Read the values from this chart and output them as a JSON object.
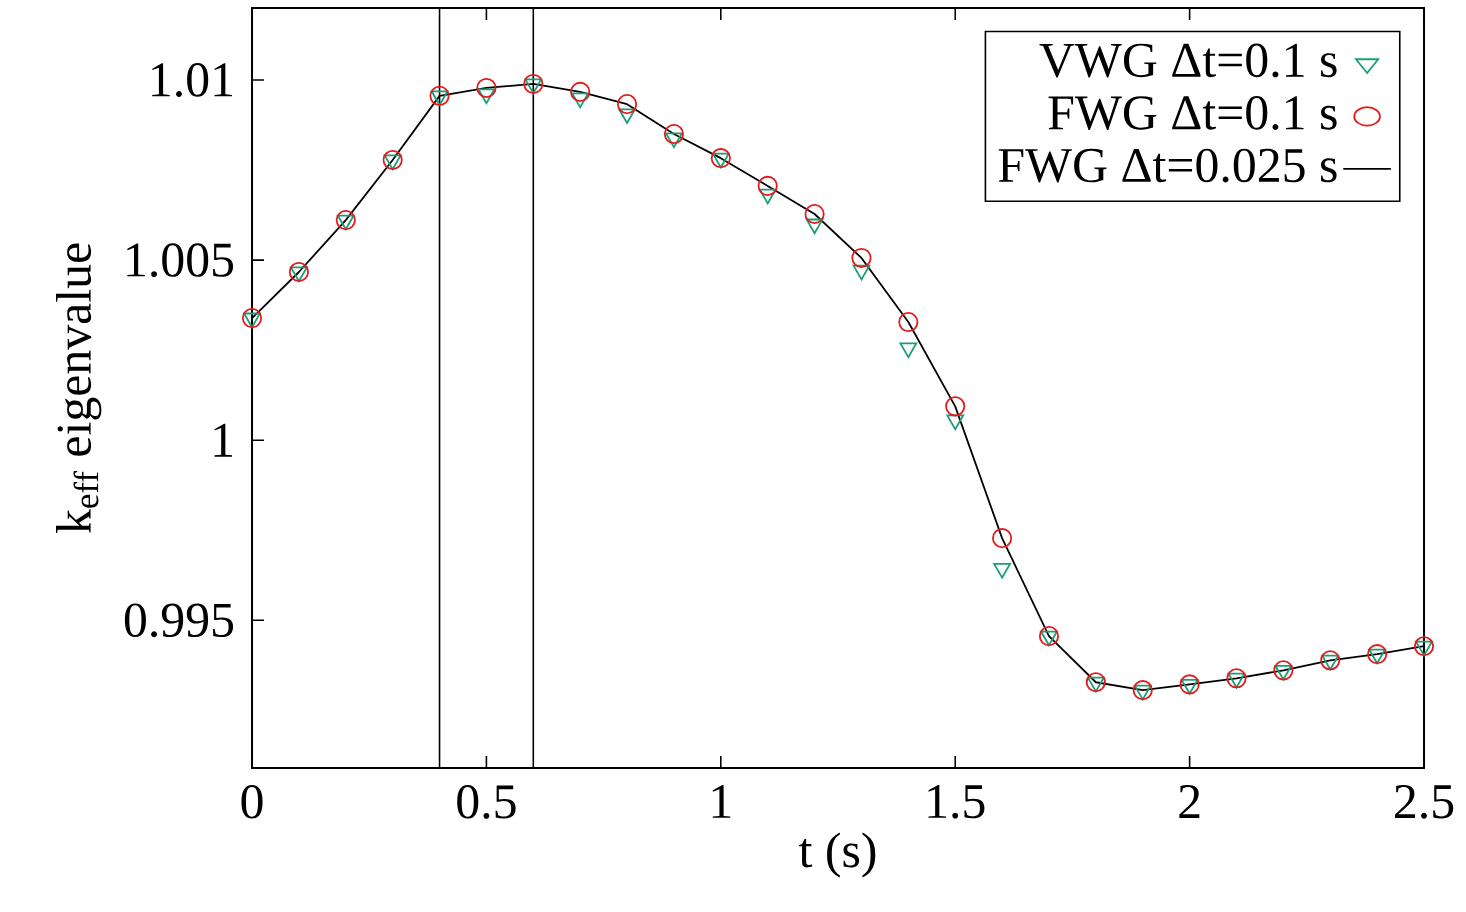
{
  "chart_data": {
    "type": "scatter",
    "xlabel": "t (s)",
    "ylabel": "k$_{eff}$ eigenvalue",
    "x": [
      0,
      0.1,
      0.2,
      0.3,
      0.4,
      0.5,
      0.6,
      0.7,
      0.8,
      0.9,
      1.0,
      1.1,
      1.2,
      1.3,
      1.4,
      1.5,
      1.6,
      1.7,
      1.8,
      1.9,
      2.0,
      2.1,
      2.2,
      2.3,
      2.4,
      2.5
    ],
    "series": [
      {
        "name": "VWG Δt=0.1 s",
        "marker": "triangle",
        "color": "#1a9e77",
        "values": [
          1.00339,
          1.00467,
          1.00611,
          1.00778,
          1.00956,
          1.00961,
          1.00989,
          1.0095,
          1.00906,
          1.00839,
          1.00783,
          1.00683,
          1.006,
          1.00472,
          1.00256,
          1.00056,
          0.99644,
          0.99456,
          0.99328,
          0.99306,
          0.99322,
          0.99339,
          0.99361,
          0.99389,
          0.99406,
          0.99428
        ]
      },
      {
        "name": "FWG Δt=0.1 s",
        "marker": "circle",
        "color": "#e41a1c",
        "values": [
          1.00339,
          1.00467,
          1.00611,
          1.00778,
          1.00956,
          1.00978,
          1.00989,
          1.00967,
          1.00933,
          1.0085,
          1.00783,
          1.00706,
          1.00628,
          1.00506,
          1.00328,
          1.00094,
          0.99728,
          0.99456,
          0.99328,
          0.99306,
          0.99322,
          0.99339,
          0.99361,
          0.99389,
          0.99406,
          0.99428
        ]
      },
      {
        "name": "FWG Δt=0.025 s",
        "type": "line",
        "marker": "none",
        "line_style": "solid",
        "color": "#000000",
        "values": [
          1.00339,
          1.00467,
          1.00611,
          1.00778,
          1.00956,
          1.00978,
          1.00989,
          1.00967,
          1.00933,
          1.0085,
          1.00783,
          1.00706,
          1.00628,
          1.00506,
          1.00328,
          1.00094,
          0.99728,
          0.99456,
          0.99328,
          0.99306,
          0.99322,
          0.99339,
          0.99361,
          0.99389,
          0.99406,
          0.99428
        ]
      }
    ],
    "xlim": [
      0,
      2.5
    ],
    "ylim": [
      0.9909,
      1.012
    ],
    "xticks": [
      0,
      0.5,
      1,
      1.5,
      2,
      2.5
    ],
    "yticks": [
      0.995,
      1,
      1.005,
      1.01
    ],
    "ref_lines": [
      {
        "axis": "x",
        "value": 0.4,
        "color": "#000000"
      },
      {
        "axis": "x",
        "value": 0.6,
        "color": "#000000"
      }
    ],
    "grid": false,
    "legend": "top right"
  }
}
